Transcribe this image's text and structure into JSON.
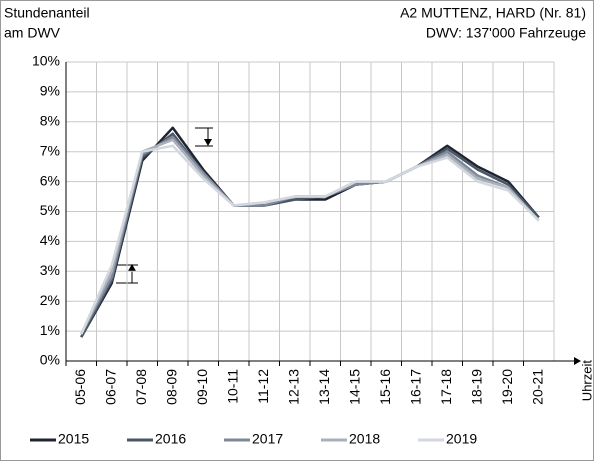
{
  "chart_data": {
    "type": "line",
    "title_left": [
      "Stundenanteil",
      "am DWV"
    ],
    "title_right": [
      "A2 MUTTENZ, HARD (Nr. 81)",
      "DWV: 137'000 Fahrzeuge"
    ],
    "x_label": "Uhrzeit",
    "categories": [
      "05-06",
      "06-07",
      "07-08",
      "08-09",
      "09-10",
      "10-11",
      "11-12",
      "12-13",
      "13-14",
      "14-15",
      "15-16",
      "16-17",
      "17-18",
      "18-19",
      "19-20",
      "20-21"
    ],
    "series": [
      {
        "name": "2015",
        "color": "#1f2530",
        "values": [
          0.8,
          2.6,
          6.7,
          7.8,
          6.4,
          5.2,
          5.2,
          5.4,
          5.4,
          5.9,
          6.0,
          6.5,
          7.2,
          6.5,
          6.0,
          4.8
        ]
      },
      {
        "name": "2016",
        "color": "#4a5566",
        "values": [
          0.8,
          2.7,
          6.8,
          7.6,
          6.3,
          5.2,
          5.2,
          5.4,
          5.5,
          5.9,
          6.0,
          6.5,
          7.1,
          6.4,
          5.9,
          4.8
        ]
      },
      {
        "name": "2017",
        "color": "#7e8899",
        "values": [
          0.9,
          2.8,
          6.9,
          7.5,
          6.3,
          5.2,
          5.2,
          5.5,
          5.5,
          5.9,
          6.0,
          6.5,
          7.0,
          6.2,
          5.8,
          4.7
        ]
      },
      {
        "name": "2018",
        "color": "#a9b0bc",
        "values": [
          0.9,
          3.0,
          7.0,
          7.4,
          6.2,
          5.2,
          5.3,
          5.5,
          5.5,
          6.0,
          6.0,
          6.5,
          6.9,
          6.1,
          5.8,
          4.7
        ]
      },
      {
        "name": "2019",
        "color": "#d3d7de",
        "values": [
          0.9,
          3.2,
          7.0,
          7.2,
          6.1,
          5.2,
          5.3,
          5.5,
          5.5,
          6.0,
          6.0,
          6.5,
          6.8,
          6.0,
          5.7,
          4.7
        ]
      }
    ],
    "ylim": [
      0,
      10
    ],
    "yticks": [
      {
        "value": 0,
        "label": "0%"
      },
      {
        "value": 1,
        "label": "1%"
      },
      {
        "value": 2,
        "label": "2%"
      },
      {
        "value": 3,
        "label": "3%"
      },
      {
        "value": 4,
        "label": "4%"
      },
      {
        "value": 5,
        "label": "5%"
      },
      {
        "value": 6,
        "label": "6%"
      },
      {
        "value": 7,
        "label": "7%"
      },
      {
        "value": 8,
        "label": "8%"
      },
      {
        "value": 9,
        "label": "9%"
      },
      {
        "value": 10,
        "label": "10%"
      }
    ],
    "grid": true
  }
}
